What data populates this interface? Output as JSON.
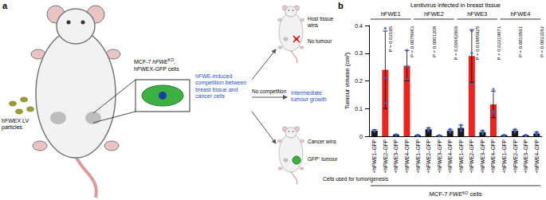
{
  "panel_a": {
    "label": "a",
    "particles": "hFWEX LV particles",
    "cells": {
      "prefix": "MCF-7 ",
      "gene": "hFWE",
      "sup": "KO",
      "suffix": ", hFWEX-GFP cells"
    },
    "competition": "hFWE-induced competition between breast tissue and cancer cells",
    "outcomes": [
      {
        "title": "Host tissue wins",
        "result": "No tumour"
      },
      {
        "title": "No competition",
        "result": "Intermediate tumour growth"
      },
      {
        "title": "Cancer wins",
        "result": "GFP⁺ tumour"
      }
    ]
  },
  "chart_data": {
    "type": "bar",
    "panel_label": "b",
    "title": "Lentivirus infected in breast tissue",
    "groups": [
      "hFWE1",
      "hFWE2",
      "hFWE3",
      "hFWE4"
    ],
    "categories": [
      "+hFWE1–GFP",
      "+hFWE2–GFP",
      "+hFWE3–GFP",
      "+hFWE4–GFP",
      "+hFWE1–GFP",
      "+hFWE2–GFP",
      "+hFWE3–GFP",
      "+hFWE4–GFP",
      "+hFWE1–GFP",
      "+hFWE2–GFP",
      "+hFWE3–GFP",
      "+hFWE4–GFP",
      "+hFWE1–GFP",
      "+hFWE2–GFP",
      "+hFWE3–GFP",
      "+hFWE4–GFP"
    ],
    "values": [
      0.02,
      0.24,
      0.005,
      0.255,
      0.003,
      0.025,
      0.002,
      0.02,
      0.03,
      0.29,
      0.015,
      0.115,
      0.003,
      0.02,
      0.003,
      0.01
    ],
    "errors": [
      0.004,
      0.14,
      0.002,
      0.055,
      0.002,
      0.005,
      0.001,
      0.005,
      0.01,
      0.095,
      0.005,
      0.048,
      0.001,
      0.005,
      0.001,
      0.005
    ],
    "points": [
      [
        0.018,
        0.022,
        0.02
      ],
      [
        0.39,
        0.21,
        0.12
      ],
      [
        0.004,
        0.006,
        0.005
      ],
      [
        0.31,
        0.25,
        0.205
      ],
      [
        0.002,
        0.004,
        0.003
      ],
      [
        0.03,
        0.02,
        0.025
      ],
      [
        0.001,
        0.003,
        0.002
      ],
      [
        0.025,
        0.015,
        0.02
      ],
      [
        0.04,
        0.02,
        0.03
      ],
      [
        0.38,
        0.3,
        0.19
      ],
      [
        0.02,
        0.01,
        0.015
      ],
      [
        0.17,
        0.09,
        0.085
      ],
      [
        0.002,
        0.004,
        0.003
      ],
      [
        0.025,
        0.015,
        0.02
      ],
      [
        0.002,
        0.004,
        0.003
      ],
      [
        0.015,
        0.005,
        0.01
      ]
    ],
    "colors": [
      "#1a1a1a",
      "#e8251f",
      "#1a1a1a",
      "#e8251f",
      "#1a1a1a",
      "#1a1a1a",
      "#1a1a1a",
      "#1a1a1a",
      "#1a1a1a",
      "#e8251f",
      "#1a1a1a",
      "#e8251f",
      "#1a1a1a",
      "#1a1a1a",
      "#1a1a1a",
      "#1a1a1a"
    ],
    "annotations": [
      null,
      "P = 0.02195",
      null,
      "P = 0.0078683",
      null,
      "P = 0.0001208",
      null,
      "P = 0.00642009",
      null,
      "P = 0.01885925",
      null,
      "P = 0.02219871",
      null,
      "P = 0.0016591",
      null,
      "P = 0.0033182"
    ],
    "y_label": "Tumour volume (cm³)",
    "x_label_left": "Cells used for tumorigenesis",
    "x_label": {
      "prefix": "MCF-7 ",
      "gene": "FWE",
      "sup": "KO",
      "suffix": " cells"
    },
    "ylim": [
      0,
      0.4
    ],
    "yticks": [
      0,
      0.1,
      0.2,
      0.3,
      0.4
    ],
    "grid": false
  }
}
